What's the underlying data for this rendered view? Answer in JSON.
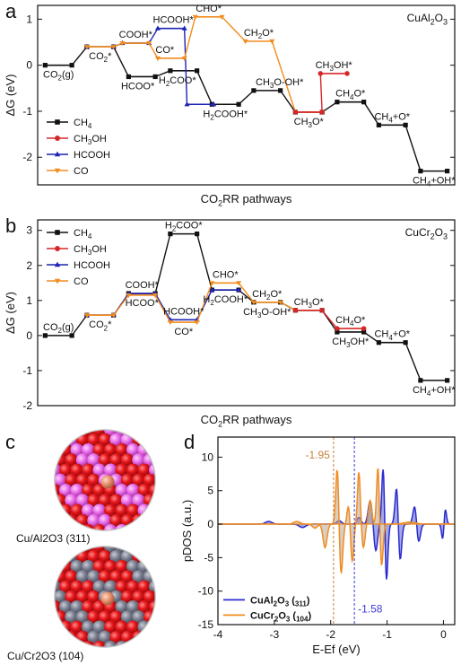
{
  "chart_data": [
    {
      "panel": "a",
      "type": "line",
      "corner_label": "Cu/Al2O3",
      "xlabel": "CO2RR pathways",
      "ylabel": "ΔG (eV)",
      "ylim": [
        -2.6,
        1.3
      ],
      "yticks": [
        -2,
        -1,
        0,
        1
      ],
      "xticks_shown": false,
      "legend_position": "bottom-left",
      "series": [
        {
          "name": "CH4",
          "color": "#111111",
          "marker": "square",
          "levels": [
            {
              "slot": 0,
              "y": 0.0
            },
            {
              "slot": 1,
              "y": 0.4
            },
            {
              "slot": 2,
              "y": -0.25
            },
            {
              "slot": 3,
              "y": -0.12
            },
            {
              "slot": 4,
              "y": -0.85
            },
            {
              "slot": 5,
              "y": -0.55
            },
            {
              "slot": 6,
              "y": -1.02
            },
            {
              "slot": 7,
              "y": -0.8
            },
            {
              "slot": 8,
              "y": -1.3
            },
            {
              "slot": 9,
              "y": -2.3
            }
          ]
        },
        {
          "name": "CH3OH",
          "color": "#d62728",
          "marker": "circle",
          "levels": [
            {
              "slot": 6,
              "y": -1.02
            },
            {
              "slot": 6.6,
              "y": -0.18
            }
          ]
        },
        {
          "name": "HCOOH",
          "color": "#1f24b4",
          "marker": "triangle-up",
          "levels": [
            {
              "slot": 1,
              "y": 0.4
            },
            {
              "slot": 1.85,
              "y": 0.48
            },
            {
              "slot": 2.7,
              "y": 0.8
            },
            {
              "slot": 3.4,
              "y": -0.85
            }
          ]
        },
        {
          "name": "CO",
          "color": "#f28c1e",
          "marker": "triangle-down",
          "levels": [
            {
              "slot": 1,
              "y": 0.4
            },
            {
              "slot": 1.85,
              "y": 0.48
            },
            {
              "slot": 2.7,
              "y": 0.15
            },
            {
              "slot": 3.6,
              "y": 1.05
            },
            {
              "slot": 4.8,
              "y": 0.52
            },
            {
              "slot": 6,
              "y": -1.02
            }
          ]
        }
      ],
      "annotations": [
        {
          "text": "CO2(g)",
          "slot": 0,
          "y": 0.0,
          "place": "below"
        },
        {
          "text": "CO2*",
          "slot": 1,
          "y": 0.4,
          "place": "below"
        },
        {
          "text": "COOH*",
          "slot": 1.85,
          "y": 0.48,
          "place": "above"
        },
        {
          "text": "HCOOH*",
          "slot": 2.75,
          "y": 0.8,
          "place": "above"
        },
        {
          "text": "CHO*",
          "slot": 3.6,
          "y": 1.05,
          "place": "above"
        },
        {
          "text": "CO*",
          "slot": 2.55,
          "y": 0.15,
          "place": "above"
        },
        {
          "text": "HCOO*",
          "slot": 1.9,
          "y": -0.25,
          "place": "below"
        },
        {
          "text": "H2COO*",
          "slot": 2.85,
          "y": -0.12,
          "place": "below"
        },
        {
          "text": "H2COOH*",
          "slot": 4,
          "y": -0.85,
          "place": "below"
        },
        {
          "text": "CH2O*",
          "slot": 4.8,
          "y": 0.52,
          "place": "above"
        },
        {
          "text": "CH3O-OH*",
          "slot": 5.3,
          "y": -0.55,
          "place": "above"
        },
        {
          "text": "CH3OH*",
          "slot": 6.6,
          "y": -0.18,
          "place": "above"
        },
        {
          "text": "CH3O*",
          "slot": 6,
          "y": -1.02,
          "place": "below"
        },
        {
          "text": "CH4O*",
          "slot": 7,
          "y": -0.8,
          "place": "above"
        },
        {
          "text": "CH4+O*",
          "slot": 8,
          "y": -1.3,
          "place": "above"
        },
        {
          "text": "CH4+OH*",
          "slot": 9,
          "y": -2.3,
          "place": "below"
        }
      ]
    },
    {
      "panel": "b",
      "type": "line",
      "corner_label": "Cu/Cr2O3",
      "xlabel": "CO2RR pathways",
      "ylabel": "ΔG (eV)",
      "ylim": [
        -2.0,
        3.3
      ],
      "yticks": [
        -2,
        -1,
        0,
        1,
        2,
        3
      ],
      "xticks_shown": false,
      "legend_position": "top-left",
      "series": [
        {
          "name": "CH4",
          "color": "#111111",
          "marker": "square",
          "levels": [
            {
              "slot": 0,
              "y": 0.0
            },
            {
              "slot": 1,
              "y": 0.58
            },
            {
              "slot": 2,
              "y": 1.2
            },
            {
              "slot": 3,
              "y": 2.9
            },
            {
              "slot": 4,
              "y": 1.3
            },
            {
              "slot": 5,
              "y": 0.95
            },
            {
              "slot": 6,
              "y": 0.72
            },
            {
              "slot": 7,
              "y": 0.1
            },
            {
              "slot": 8,
              "y": -0.2
            },
            {
              "slot": 9,
              "y": -1.28
            }
          ]
        },
        {
          "name": "CH3OH",
          "color": "#d62728",
          "marker": "circle",
          "levels": [
            {
              "slot": 6,
              "y": 0.72
            },
            {
              "slot": 7,
              "y": 0.2
            }
          ]
        },
        {
          "name": "HCOOH",
          "color": "#1f24b4",
          "marker": "triangle-up",
          "levels": [
            {
              "slot": 1,
              "y": 0.58
            },
            {
              "slot": 2,
              "y": 1.2
            },
            {
              "slot": 3,
              "y": 0.45
            },
            {
              "slot": 4,
              "y": 1.3
            }
          ]
        },
        {
          "name": "CO",
          "color": "#f28c1e",
          "marker": "triangle-down",
          "levels": [
            {
              "slot": 1,
              "y": 0.58
            },
            {
              "slot": 2,
              "y": 1.15
            },
            {
              "slot": 3,
              "y": 0.38
            },
            {
              "slot": 4,
              "y": 1.5
            },
            {
              "slot": 5,
              "y": 0.95
            },
            {
              "slot": 6,
              "y": 0.72
            }
          ]
        }
      ],
      "annotations": [
        {
          "text": "CO2(g)",
          "slot": 0,
          "y": 0.0,
          "place": "above"
        },
        {
          "text": "CO2*",
          "slot": 1,
          "y": 0.58,
          "place": "below"
        },
        {
          "text": "COOH*",
          "slot": 2,
          "y": 1.2,
          "place": "above"
        },
        {
          "text": "H2COO*",
          "slot": 3,
          "y": 2.9,
          "place": "above"
        },
        {
          "text": "HCOOH*",
          "slot": 3,
          "y": 0.45,
          "place": "above"
        },
        {
          "text": "HCOO*",
          "slot": 2,
          "y": 1.2,
          "place": "below"
        },
        {
          "text": "CO*",
          "slot": 3,
          "y": 0.38,
          "place": "below"
        },
        {
          "text": "CHO*",
          "slot": 4,
          "y": 1.5,
          "place": "above"
        },
        {
          "text": "H2COOH*",
          "slot": 4,
          "y": 1.3,
          "place": "below"
        },
        {
          "text": "CH2O*",
          "slot": 5,
          "y": 0.95,
          "place": "above"
        },
        {
          "text": "CH3O-OH*",
          "slot": 5,
          "y": 0.95,
          "place": "below"
        },
        {
          "text": "CH3O*",
          "slot": 6,
          "y": 0.72,
          "place": "above"
        },
        {
          "text": "CH4O*",
          "slot": 7,
          "y": 0.2,
          "place": "above"
        },
        {
          "text": "CH3OH*",
          "slot": 7,
          "y": 0.1,
          "place": "below"
        },
        {
          "text": "CH4+O*",
          "slot": 8,
          "y": -0.2,
          "place": "above"
        },
        {
          "text": "CH4+OH*",
          "slot": 9,
          "y": -1.28,
          "place": "below"
        }
      ]
    },
    {
      "panel": "d",
      "type": "area",
      "xlabel": "E-Ef (eV)",
      "ylabel": "pDOS (a.u.)",
      "xlim": [
        -4,
        0.2
      ],
      "ylim": [
        -15,
        13
      ],
      "xticks": [
        -4,
        -3,
        -2,
        -1,
        0
      ],
      "yticks": [
        -15,
        -10,
        -5,
        0,
        5,
        10
      ],
      "legend_position": "bottom-left",
      "series": [
        {
          "name": "Cu/Al2O3 (311)",
          "color": "#2b2bd0",
          "fill": "#5a63c8",
          "peaks": [
            {
              "x": -3.1,
              "h": 0.4,
              "w": 0.08
            },
            {
              "x": -2.5,
              "h": -0.5,
              "w": 0.08
            },
            {
              "x": -1.85,
              "h": 0.5,
              "w": 0.06
            },
            {
              "x": -1.5,
              "h": 1.0,
              "w": 0.05
            },
            {
              "x": -1.3,
              "h": 3.5,
              "w": 0.05
            },
            {
              "x": -1.2,
              "h": -4.0,
              "w": 0.045
            },
            {
              "x": -1.06,
              "h": 11.2,
              "w": 0.04
            },
            {
              "x": -1.02,
              "h": -11.3,
              "w": 0.04
            },
            {
              "x": -0.82,
              "h": 7.8,
              "w": 0.045
            },
            {
              "x": -0.78,
              "h": -7.8,
              "w": 0.045
            },
            {
              "x": -0.5,
              "h": 3.5,
              "w": 0.05
            },
            {
              "x": -0.45,
              "h": -3.5,
              "w": 0.05
            },
            {
              "x": 0.02,
              "h": 4.6,
              "w": 0.035
            },
            {
              "x": 0.0,
              "h": -4.6,
              "w": 0.035
            }
          ]
        },
        {
          "name": "Cu/Cr2O3 (104)",
          "color": "#f28c1e",
          "fill": "#b8a596",
          "peaks": [
            {
              "x": -2.6,
              "h": 0.4,
              "w": 0.08
            },
            {
              "x": -2.28,
              "h": -0.6,
              "w": 0.06
            },
            {
              "x": -2.1,
              "h": -3.5,
              "w": 0.05
            },
            {
              "x": -1.88,
              "h": 9.2,
              "w": 0.04
            },
            {
              "x": -1.82,
              "h": -8.0,
              "w": 0.045
            },
            {
              "x": -1.68,
              "h": 3.0,
              "w": 0.04
            },
            {
              "x": -1.62,
              "h": -5.8,
              "w": 0.04
            },
            {
              "x": -1.5,
              "h": 7.8,
              "w": 0.035
            },
            {
              "x": -1.42,
              "h": -3.5,
              "w": 0.04
            },
            {
              "x": -1.3,
              "h": 3.5,
              "w": 0.04
            },
            {
              "x": -1.16,
              "h": 9.0,
              "w": 0.035
            },
            {
              "x": -1.1,
              "h": -6.5,
              "w": 0.04
            },
            {
              "x": -0.6,
              "h": 0.3,
              "w": 0.15
            }
          ]
        }
      ],
      "vlines": [
        {
          "x": -1.95,
          "label": "-1.95",
          "color": "#c8823c",
          "label_y": 9.8
        },
        {
          "x": -1.58,
          "label": "-1.58",
          "color": "#3a3ad6",
          "label_y": -13.2
        }
      ]
    }
  ],
  "panel_c": {
    "letter": "c",
    "top_caption": "Cu/Al2O3 (311)",
    "bottom_caption": "Cu/Cr2O3 (104)"
  },
  "panel_letters": {
    "a": "a",
    "b": "b",
    "d": "d"
  }
}
